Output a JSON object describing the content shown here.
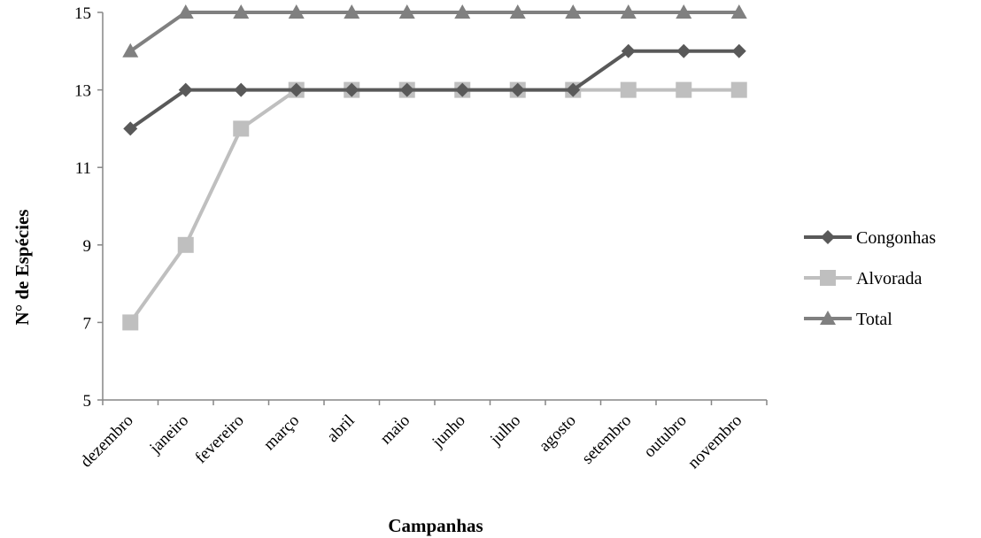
{
  "chart_data": {
    "type": "line",
    "xlabel": "Campanhas",
    "ylabel": "N° de Espécies",
    "ylim": [
      5,
      15
    ],
    "yticks": [
      "5",
      "7",
      "9",
      "11",
      "13",
      "15"
    ],
    "grid": false,
    "legend_position": "right",
    "categories": [
      "dezembro",
      "janeiro",
      "fevereiro",
      "março",
      "abril",
      "maio",
      "junho",
      "julho",
      "agosto",
      "setembro",
      "outubro",
      "novembro"
    ],
    "series": [
      {
        "name": "Congonhas",
        "marker": "diamond",
        "color": "#595959",
        "values": [
          12,
          13,
          13,
          13,
          13,
          13,
          13,
          13,
          13,
          14,
          14,
          14
        ]
      },
      {
        "name": "Alvorada",
        "marker": "square",
        "color": "#bfbfbf",
        "values": [
          7,
          9,
          12,
          13,
          13,
          13,
          13,
          13,
          13,
          13,
          13,
          13
        ]
      },
      {
        "name": "Total",
        "marker": "triangle",
        "color": "#808080",
        "values": [
          14,
          15,
          15,
          15,
          15,
          15,
          15,
          15,
          15,
          15,
          15,
          15
        ]
      }
    ]
  }
}
